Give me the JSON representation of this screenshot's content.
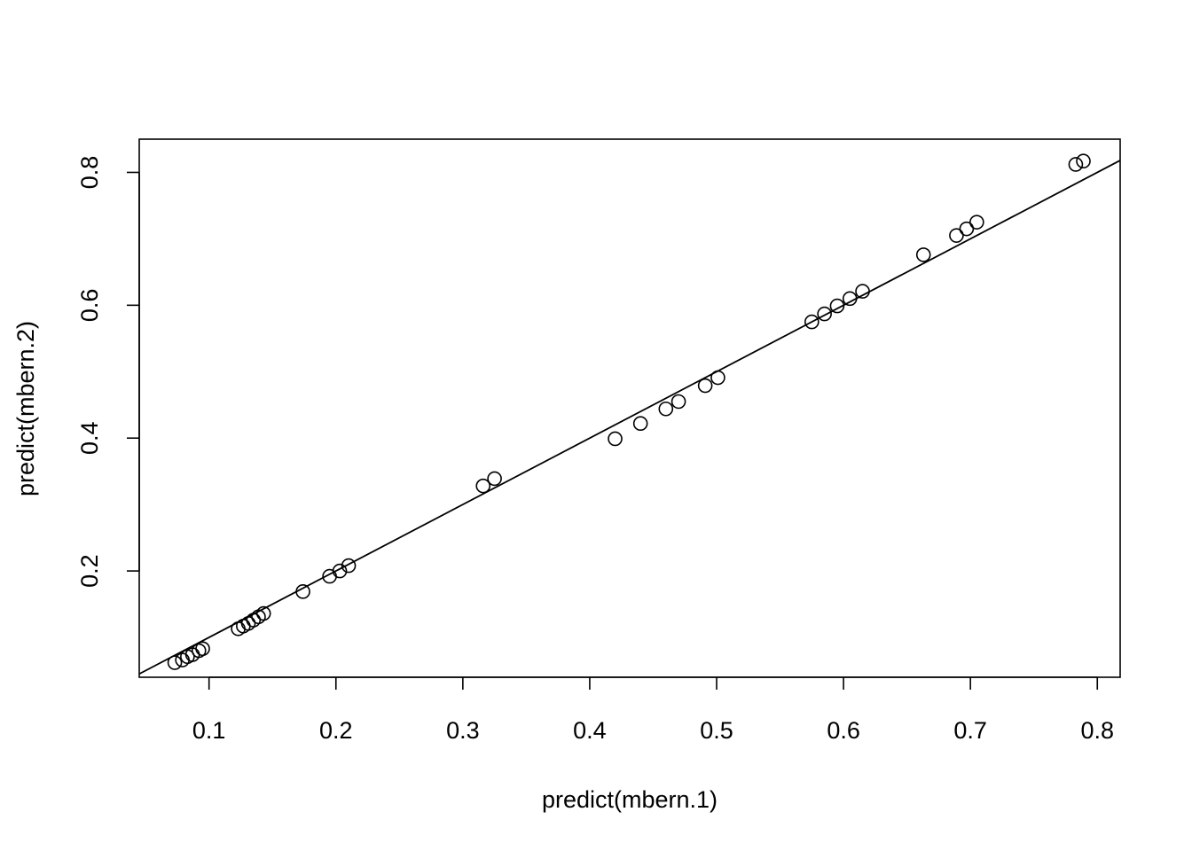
{
  "chart_data": {
    "type": "scatter",
    "title": "",
    "xlabel": "predict(mbern.1)",
    "ylabel": "predict(mbern.2)",
    "xlim": [
      0.045,
      0.818
    ],
    "ylim": [
      0.04,
      0.85
    ],
    "x_ticks": [
      0.1,
      0.2,
      0.3,
      0.4,
      0.5,
      0.6,
      0.7,
      0.8
    ],
    "x_tick_labels": [
      "0.1",
      "0.2",
      "0.3",
      "0.4",
      "0.5",
      "0.6",
      "0.7",
      "0.8"
    ],
    "y_ticks": [
      0.2,
      0.4,
      0.6,
      0.8
    ],
    "y_tick_labels": [
      "0.2",
      "0.4",
      "0.6",
      "0.8"
    ],
    "grid": false,
    "points": {
      "x": [
        0.073,
        0.079,
        0.083,
        0.087,
        0.092,
        0.095,
        0.123,
        0.127,
        0.131,
        0.135,
        0.139,
        0.143,
        0.174,
        0.195,
        0.203,
        0.21,
        0.316,
        0.325,
        0.42,
        0.44,
        0.46,
        0.47,
        0.491,
        0.501,
        0.575,
        0.585,
        0.595,
        0.605,
        0.615,
        0.663,
        0.689,
        0.697,
        0.705,
        0.783,
        0.789
      ],
      "y": [
        0.062,
        0.066,
        0.071,
        0.074,
        0.08,
        0.083,
        0.113,
        0.117,
        0.121,
        0.126,
        0.131,
        0.136,
        0.169,
        0.192,
        0.2,
        0.208,
        0.328,
        0.339,
        0.399,
        0.422,
        0.444,
        0.455,
        0.479,
        0.491,
        0.575,
        0.587,
        0.599,
        0.61,
        0.621,
        0.676,
        0.705,
        0.715,
        0.725,
        0.812,
        0.817
      ]
    },
    "reference_line": {
      "intercept": 0.0,
      "slope": 1.0
    }
  }
}
